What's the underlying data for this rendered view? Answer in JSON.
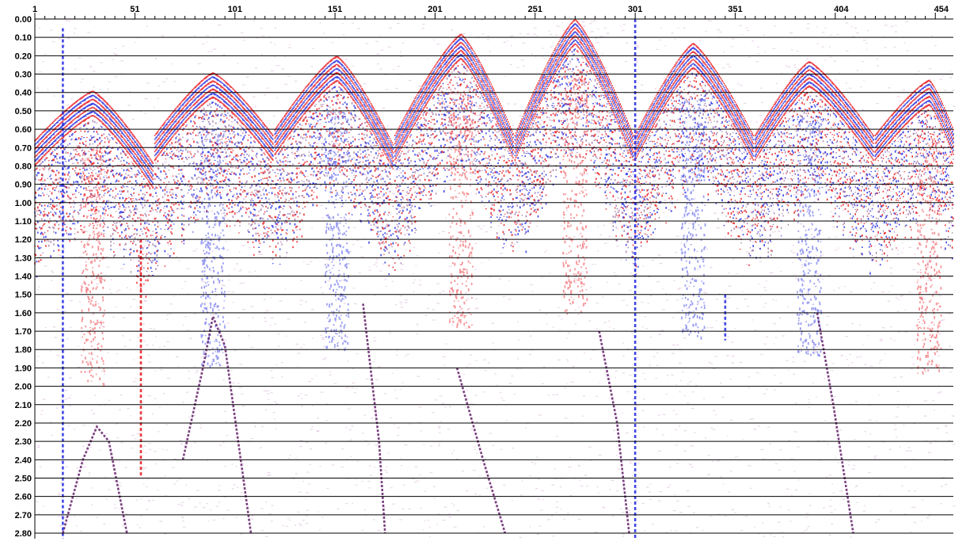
{
  "chart_data": {
    "type": "seismic-section",
    "title": "",
    "xlabel": "",
    "ylabel": "",
    "x_tick_labels": [
      "1",
      "51",
      "101",
      "151",
      "201",
      "251",
      "301",
      "351",
      "404",
      "454"
    ],
    "x_tick_values": [
      1,
      51,
      101,
      151,
      201,
      251,
      301,
      351,
      404,
      454
    ],
    "x_range": [
      1,
      460
    ],
    "y_tick_labels": [
      "0.00",
      "0.10",
      "0.20",
      "0.30",
      "0.40",
      "0.50",
      "0.60",
      "0.70",
      "0.80",
      "0.90",
      "1.00",
      "1.10",
      "1.20",
      "1.30",
      "1.40",
      "1.50",
      "1.60",
      "1.70",
      "1.80",
      "1.90",
      "2.00",
      "2.10",
      "2.20",
      "2.30",
      "2.40",
      "2.50",
      "2.60",
      "2.70",
      "2.80"
    ],
    "y_range": [
      0.0,
      2.83
    ],
    "y_reversed": true,
    "grid": "horizontal",
    "colors": {
      "positive": "#e8141a",
      "negative": "#1f27e0",
      "overlap": "#5a1060",
      "grid": "#000000"
    },
    "shot_gathers": [
      {
        "trace_start": 1,
        "trace_end": 60,
        "apex_trace": 30,
        "apex_time": 0.39,
        "edge_time_left": 0.66,
        "edge_time_right": 0.78
      },
      {
        "trace_start": 61,
        "trace_end": 120,
        "apex_trace": 90,
        "apex_time": 0.29,
        "edge_time_left": 0.63,
        "edge_time_right": 0.63
      },
      {
        "trace_start": 121,
        "trace_end": 180,
        "apex_trace": 152,
        "apex_time": 0.2,
        "edge_time_left": 0.6,
        "edge_time_right": 0.68
      },
      {
        "trace_start": 181,
        "trace_end": 240,
        "apex_trace": 214,
        "apex_time": 0.08,
        "edge_time_left": 0.63,
        "edge_time_right": 0.62
      },
      {
        "trace_start": 241,
        "trace_end": 300,
        "apex_trace": 271,
        "apex_time": 0.0,
        "edge_time_left": 0.63,
        "edge_time_right": 0.63
      },
      {
        "trace_start": 301,
        "trace_end": 360,
        "apex_trace": 330,
        "apex_time": 0.13,
        "edge_time_left": 0.63,
        "edge_time_right": 0.63
      },
      {
        "trace_start": 361,
        "trace_end": 420,
        "apex_trace": 388,
        "apex_time": 0.23,
        "edge_time_left": 0.63,
        "edge_time_right": 0.63
      },
      {
        "trace_start": 421,
        "trace_end": 460,
        "apex_trace": 448,
        "apex_time": 0.33,
        "edge_time_left": 0.63,
        "edge_time_right": 0.6
      }
    ],
    "deep_events": [
      {
        "points": [
          [
            15,
            2.8
          ],
          [
            25,
            2.4
          ],
          [
            32,
            2.22
          ],
          [
            38,
            2.3
          ],
          [
            47,
            2.8
          ]
        ]
      },
      {
        "points": [
          [
            75,
            2.4
          ],
          [
            85,
            1.9
          ],
          [
            90,
            1.62
          ],
          [
            96,
            1.78
          ],
          [
            109,
            2.8
          ]
        ]
      },
      {
        "points": [
          [
            165,
            1.55
          ],
          [
            173,
            2.3
          ],
          [
            176,
            2.8
          ]
        ]
      },
      {
        "points": [
          [
            212,
            1.9
          ],
          [
            225,
            2.4
          ],
          [
            236,
            2.8
          ]
        ]
      },
      {
        "points": [
          [
            283,
            1.7
          ],
          [
            292,
            2.2
          ],
          [
            298,
            2.8
          ]
        ]
      },
      {
        "points": [
          [
            392,
            1.6
          ],
          [
            400,
            2.1
          ],
          [
            410,
            2.8
          ]
        ]
      }
    ],
    "bright_traces": [
      {
        "trace": 15,
        "time_start": 0.05,
        "time_end": 2.83,
        "color": "#1f27e0"
      },
      {
        "trace": 54,
        "time_start": 1.2,
        "time_end": 2.5,
        "color": "#e8141a"
      },
      {
        "trace": 301,
        "time_start": 0.0,
        "time_end": 2.83,
        "color": "#1f27e0"
      },
      {
        "trace": 346,
        "time_start": 1.5,
        "time_end": 1.75,
        "color": "#1f27e0"
      }
    ]
  }
}
